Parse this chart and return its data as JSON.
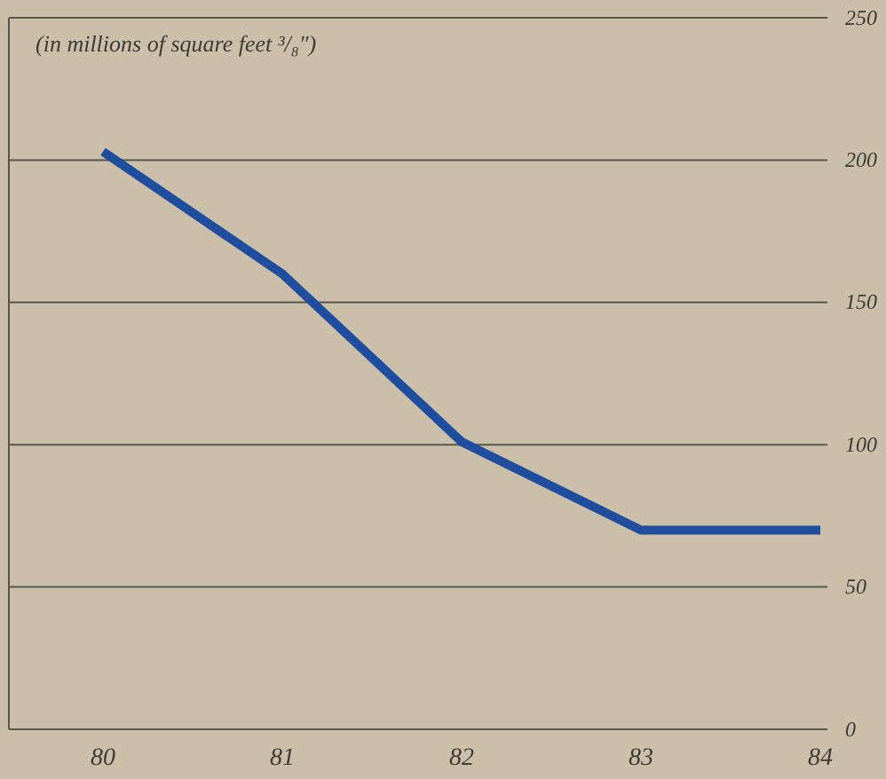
{
  "chart_data": {
    "type": "line",
    "title": "(in millions of square feet ³/₈″)",
    "categories": [
      "80",
      "81",
      "82",
      "83",
      "84"
    ],
    "series": [
      {
        "color": "#1f4e9e",
        "values": [
          203,
          160,
          101,
          70,
          70
        ]
      }
    ],
    "ylim": [
      0,
      250
    ],
    "yticks": [
      0,
      50,
      100,
      150,
      200,
      250
    ],
    "grid": "y",
    "marker": "none",
    "line_style": "solid"
  }
}
